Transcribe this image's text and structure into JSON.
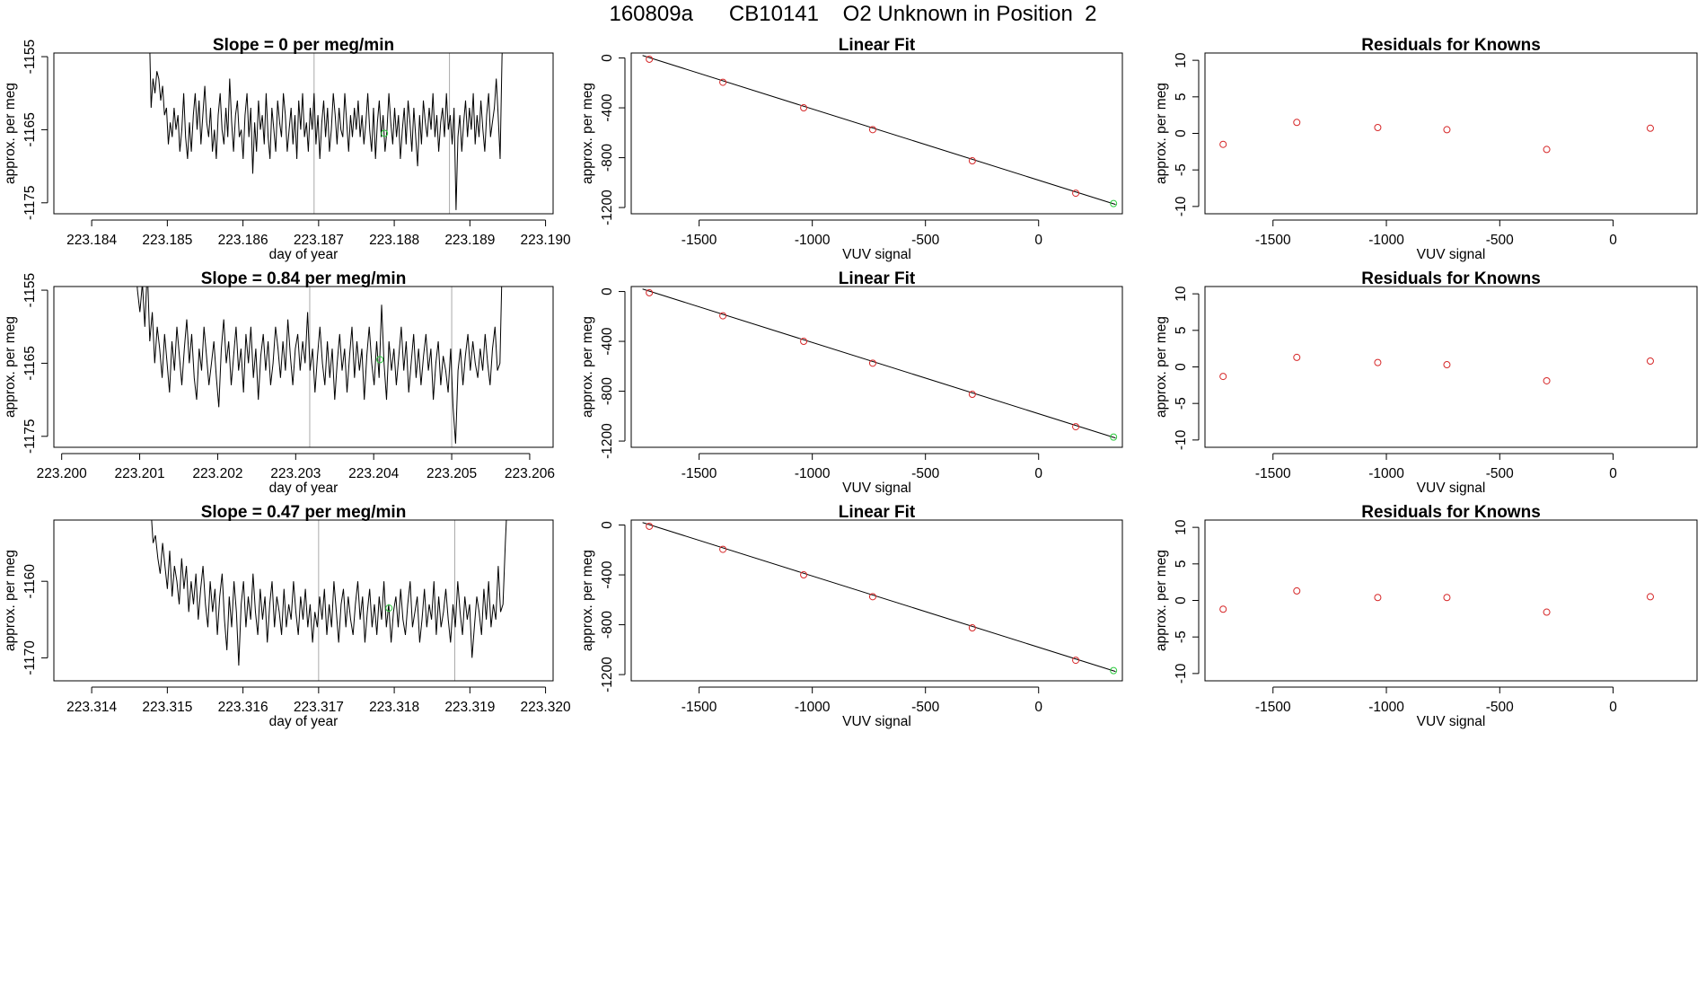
{
  "title": "160809a      CB10141    O2 Unknown in Position  2",
  "colors": {
    "known": "#d62728",
    "unknown": "#2ecc40",
    "trace": "#000000",
    "vline": "#aaaaaa"
  },
  "chart_data": [
    {
      "type": "line",
      "panel": "timeseries",
      "row": 1,
      "title": "Slope =  0  per meg/min",
      "xlabel": "day of year",
      "ylabel": "approx. per meg",
      "xlim": [
        223.1835,
        223.1901
      ],
      "ylim": [
        -1176.5,
        -1154.5
      ],
      "xticks": [
        "223.184",
        "223.185",
        "223.186",
        "223.187",
        "223.188",
        "223.189",
        "223.190"
      ],
      "xtick_values": [
        223.184,
        223.185,
        223.186,
        223.187,
        223.188,
        223.189,
        223.19
      ],
      "yticks": [
        "-1175",
        "-1165",
        "-1155"
      ],
      "ytick_values": [
        -1175,
        -1165,
        -1155
      ],
      "vlines": [
        223.18694,
        223.18873
      ],
      "trace_start": 223.18476,
      "trace_end": 223.18945,
      "y": [
        -1150,
        -1162,
        -1158,
        -1160,
        -1157,
        -1158,
        -1161,
        -1159,
        -1163,
        -1162,
        -1167,
        -1164,
        -1166,
        -1162,
        -1165,
        -1163,
        -1168,
        -1165,
        -1160,
        -1166,
        -1169,
        -1164,
        -1168,
        -1163,
        -1160,
        -1165,
        -1161,
        -1167,
        -1163,
        -1159,
        -1164,
        -1166,
        -1162,
        -1168,
        -1165,
        -1169,
        -1163,
        -1160,
        -1165,
        -1167,
        -1162,
        -1166,
        -1158,
        -1164,
        -1168,
        -1163,
        -1161,
        -1166,
        -1165,
        -1169,
        -1163,
        -1160,
        -1166,
        -1162,
        -1171,
        -1164,
        -1168,
        -1161,
        -1165,
        -1163,
        -1167,
        -1160,
        -1166,
        -1169,
        -1162,
        -1165,
        -1168,
        -1161,
        -1164,
        -1166,
        -1160,
        -1163,
        -1168,
        -1165,
        -1162,
        -1167,
        -1163,
        -1169,
        -1161,
        -1165,
        -1160,
        -1166,
        -1164,
        -1168,
        -1162,
        -1165,
        -1160,
        -1167,
        -1163,
        -1169,
        -1164,
        -1161,
        -1166,
        -1162,
        -1168,
        -1165,
        -1160,
        -1163,
        -1167,
        -1162,
        -1165,
        -1166,
        -1160,
        -1164,
        -1168,
        -1163,
        -1166,
        -1162,
        -1165,
        -1161,
        -1166,
        -1163,
        -1167,
        -1164,
        -1160,
        -1165,
        -1168,
        -1162,
        -1169,
        -1164,
        -1161,
        -1166,
        -1163,
        -1168,
        -1165,
        -1160,
        -1164,
        -1167,
        -1162,
        -1166,
        -1163,
        -1169,
        -1165,
        -1162,
        -1167,
        -1161,
        -1164,
        -1168,
        -1162,
        -1166,
        -1170,
        -1163,
        -1167,
        -1161,
        -1164,
        -1166,
        -1162,
        -1165,
        -1160,
        -1166,
        -1163,
        -1168,
        -1164,
        -1162,
        -1166,
        -1160,
        -1165,
        -1163,
        -1167,
        -1162,
        -1176,
        -1166,
        -1163,
        -1168,
        -1164,
        -1161,
        -1166,
        -1162,
        -1165,
        -1160,
        -1167,
        -1163,
        -1166,
        -1161,
        -1165,
        -1168,
        -1163,
        -1160,
        -1166,
        -1164,
        -1162,
        -1158,
        -1163,
        -1169,
        -1155,
        -1148
      ],
      "marker_x": 223.18787,
      "marker_y": -1165.5
    },
    {
      "type": "scatter",
      "panel": "linear-fit",
      "row": 1,
      "title": "Linear Fit",
      "xlabel": "VUV signal",
      "ylabel": "approx. per meg",
      "xlim": [
        -1800,
        370
      ],
      "ylim": [
        -1250,
        40
      ],
      "xticks": [
        "-1500",
        "-1000",
        "-500",
        "0"
      ],
      "xtick_values": [
        -1500,
        -1000,
        -500,
        0
      ],
      "yticks": [
        "0",
        "-400",
        "-800",
        "-1200"
      ],
      "ytick_values": [
        0,
        -400,
        -800,
        -1200
      ],
      "fit_line": [
        [
          -1750,
          20
        ],
        [
          340,
          -1175
        ]
      ],
      "known_x": [
        -1720,
        -1395,
        -1038,
        -733,
        -293,
        164
      ],
      "known_y": [
        -10,
        -195,
        -400,
        -575,
        -825,
        -1085
      ],
      "unknown_x": 331,
      "unknown_y": -1168
    },
    {
      "type": "scatter",
      "panel": "residuals",
      "row": 1,
      "title": "Residuals for Knowns",
      "xlabel": "VUV signal",
      "ylabel": "approx. per meg",
      "xlim": [
        -1800,
        370
      ],
      "ylim": [
        -11,
        11
      ],
      "xticks": [
        "-1500",
        "-1000",
        "-500",
        "0"
      ],
      "xtick_values": [
        -1500,
        -1000,
        -500,
        0
      ],
      "yticks": [
        "-10",
        "-5",
        "0",
        "5",
        "10"
      ],
      "ytick_values": [
        -10,
        -5,
        0,
        5,
        10
      ],
      "x": [
        -1720,
        -1395,
        -1038,
        -733,
        -293,
        164
      ],
      "y": [
        -1.5,
        1.5,
        0.8,
        0.5,
        -2.2,
        0.7
      ]
    },
    {
      "type": "line",
      "panel": "timeseries",
      "row": 2,
      "title": "Slope =  0.84  per meg/min",
      "xlabel": "day of year",
      "ylabel": "approx. per meg",
      "xlim": [
        223.1999,
        223.2063
      ],
      "ylim": [
        -1176.5,
        -1154.5
      ],
      "xticks": [
        "223.200",
        "223.201",
        "223.202",
        "223.203",
        "223.204",
        "223.205",
        "223.206"
      ],
      "xtick_values": [
        223.2,
        223.201,
        223.202,
        223.203,
        223.204,
        223.205,
        223.206
      ],
      "yticks": [
        "-1175",
        "-1165",
        "-1155"
      ],
      "ytick_values": [
        -1175,
        -1165,
        -1155
      ],
      "vlines": [
        223.20318,
        223.205
      ],
      "trace_start": 223.20094,
      "trace_end": 223.20565,
      "y": [
        -1150,
        -1155,
        -1158,
        -1154,
        -1160,
        -1152,
        -1162,
        -1158,
        -1165,
        -1160,
        -1163,
        -1167,
        -1161,
        -1165,
        -1169,
        -1162,
        -1166,
        -1160,
        -1164,
        -1168,
        -1163,
        -1159,
        -1165,
        -1161,
        -1167,
        -1170,
        -1163,
        -1166,
        -1160,
        -1164,
        -1168,
        -1165,
        -1162,
        -1167,
        -1171,
        -1163,
        -1159,
        -1165,
        -1162,
        -1168,
        -1164,
        -1160,
        -1166,
        -1163,
        -1169,
        -1161,
        -1165,
        -1160,
        -1167,
        -1163,
        -1170,
        -1164,
        -1161,
        -1166,
        -1162,
        -1168,
        -1165,
        -1160,
        -1163,
        -1167,
        -1162,
        -1166,
        -1159,
        -1164,
        -1168,
        -1163,
        -1161,
        -1166,
        -1162,
        -1165,
        -1158,
        -1166,
        -1163,
        -1169,
        -1164,
        -1160,
        -1165,
        -1168,
        -1162,
        -1167,
        -1163,
        -1170,
        -1165,
        -1161,
        -1166,
        -1163,
        -1169,
        -1164,
        -1160,
        -1167,
        -1162,
        -1166,
        -1163,
        -1170,
        -1164,
        -1160,
        -1165,
        -1168,
        -1162,
        -1167,
        -1157,
        -1165,
        -1170,
        -1162,
        -1166,
        -1163,
        -1168,
        -1164,
        -1160,
        -1166,
        -1162,
        -1169,
        -1165,
        -1161,
        -1167,
        -1163,
        -1168,
        -1164,
        -1161,
        -1166,
        -1163,
        -1170,
        -1165,
        -1162,
        -1168,
        -1164,
        -1166,
        -1169,
        -1163,
        -1171,
        -1176,
        -1166,
        -1163,
        -1168,
        -1164,
        -1161,
        -1166,
        -1162,
        -1165,
        -1167,
        -1163,
        -1166,
        -1161,
        -1165,
        -1168,
        -1163,
        -1160,
        -1166,
        -1165,
        -1150
      ],
      "marker_x": 223.20408,
      "marker_y": -1164.5
    },
    {
      "type": "scatter",
      "panel": "linear-fit",
      "row": 2,
      "title": "Linear Fit",
      "xlabel": "VUV signal",
      "ylabel": "approx. per meg",
      "xlim": [
        -1800,
        370
      ],
      "ylim": [
        -1250,
        40
      ],
      "xticks": [
        "-1500",
        "-1000",
        "-500",
        "0"
      ],
      "xtick_values": [
        -1500,
        -1000,
        -500,
        0
      ],
      "yticks": [
        "0",
        "-400",
        "-800",
        "-1200"
      ],
      "ytick_values": [
        0,
        -400,
        -800,
        -1200
      ],
      "fit_line": [
        [
          -1750,
          20
        ],
        [
          340,
          -1175
        ]
      ],
      "known_x": [
        -1720,
        -1395,
        -1038,
        -733,
        -293,
        164
      ],
      "known_y": [
        -10,
        -195,
        -400,
        -575,
        -825,
        -1085
      ],
      "unknown_x": 331,
      "unknown_y": -1168
    },
    {
      "type": "scatter",
      "panel": "residuals",
      "row": 2,
      "title": "Residuals for Knowns",
      "xlabel": "VUV signal",
      "ylabel": "approx. per meg",
      "xlim": [
        -1800,
        370
      ],
      "ylim": [
        -11,
        11
      ],
      "xticks": [
        "-1500",
        "-1000",
        "-500",
        "0"
      ],
      "xtick_values": [
        -1500,
        -1000,
        -500,
        0
      ],
      "yticks": [
        "-10",
        "-5",
        "0",
        "5",
        "10"
      ],
      "ytick_values": [
        -10,
        -5,
        0,
        5,
        10
      ],
      "x": [
        -1720,
        -1395,
        -1038,
        -733,
        -293,
        164
      ],
      "y": [
        -1.3,
        1.3,
        0.6,
        0.3,
        -1.9,
        0.8
      ]
    },
    {
      "type": "line",
      "panel": "timeseries",
      "row": 3,
      "title": "Slope =  0.47  per meg/min",
      "xlabel": "day of year",
      "ylabel": "approx. per meg",
      "xlim": [
        223.3135,
        223.3201
      ],
      "ylim": [
        -1173,
        -1152
      ],
      "xticks": [
        "223.314",
        "223.315",
        "223.316",
        "223.317",
        "223.318",
        "223.319",
        "223.320"
      ],
      "xtick_values": [
        223.314,
        223.315,
        223.316,
        223.317,
        223.318,
        223.319,
        223.32
      ],
      "yticks": [
        "-1170",
        "-1160"
      ],
      "ytick_values": [
        -1170,
        -1160
      ],
      "vlines": [
        223.317,
        223.3188
      ],
      "trace_start": 223.31478,
      "trace_end": 223.3195,
      "y": [
        -1150,
        -1155,
        -1154,
        -1157,
        -1159,
        -1155,
        -1158,
        -1161,
        -1156,
        -1162,
        -1158,
        -1160,
        -1163,
        -1157,
        -1161,
        -1158,
        -1164,
        -1160,
        -1163,
        -1159,
        -1165,
        -1161,
        -1158,
        -1163,
        -1166,
        -1160,
        -1164,
        -1161,
        -1167,
        -1162,
        -1159,
        -1165,
        -1169,
        -1162,
        -1166,
        -1160,
        -1164,
        -1171,
        -1163,
        -1160,
        -1166,
        -1162,
        -1165,
        -1159,
        -1164,
        -1167,
        -1161,
        -1165,
        -1162,
        -1168,
        -1163,
        -1160,
        -1166,
        -1162,
        -1164,
        -1167,
        -1161,
        -1166,
        -1163,
        -1165,
        -1160,
        -1164,
        -1167,
        -1162,
        -1165,
        -1161,
        -1166,
        -1163,
        -1168,
        -1164,
        -1166,
        -1162,
        -1165,
        -1161,
        -1167,
        -1163,
        -1166,
        -1160,
        -1164,
        -1168,
        -1163,
        -1161,
        -1166,
        -1162,
        -1165,
        -1167,
        -1163,
        -1160,
        -1165,
        -1162,
        -1168,
        -1164,
        -1161,
        -1166,
        -1163,
        -1167,
        -1162,
        -1165,
        -1160,
        -1166,
        -1163,
        -1168,
        -1164,
        -1162,
        -1166,
        -1161,
        -1165,
        -1167,
        -1163,
        -1160,
        -1166,
        -1164,
        -1162,
        -1168,
        -1165,
        -1161,
        -1166,
        -1163,
        -1165,
        -1160,
        -1167,
        -1162,
        -1166,
        -1164,
        -1161,
        -1165,
        -1168,
        -1163,
        -1166,
        -1160,
        -1164,
        -1167,
        -1162,
        -1165,
        -1163,
        -1170,
        -1166,
        -1162,
        -1164,
        -1167,
        -1161,
        -1165,
        -1160,
        -1166,
        -1163,
        -1165,
        -1158,
        -1164,
        -1163,
        -1155,
        -1148
      ],
      "marker_x": 223.31793,
      "marker_y": -1163.5
    },
    {
      "type": "scatter",
      "panel": "linear-fit",
      "row": 3,
      "title": "Linear Fit",
      "xlabel": "VUV signal",
      "ylabel": "approx. per meg",
      "xlim": [
        -1800,
        370
      ],
      "ylim": [
        -1250,
        40
      ],
      "xticks": [
        "-1500",
        "-1000",
        "-500",
        "0"
      ],
      "xtick_values": [
        -1500,
        -1000,
        -500,
        0
      ],
      "yticks": [
        "0",
        "-400",
        "-800",
        "-1200"
      ],
      "ytick_values": [
        0,
        -400,
        -800,
        -1200
      ],
      "fit_line": [
        [
          -1750,
          20
        ],
        [
          340,
          -1175
        ]
      ],
      "known_x": [
        -1720,
        -1395,
        -1038,
        -733,
        -293,
        164
      ],
      "known_y": [
        -10,
        -195,
        -400,
        -575,
        -825,
        -1085
      ],
      "unknown_x": 331,
      "unknown_y": -1168
    },
    {
      "type": "scatter",
      "panel": "residuals",
      "row": 3,
      "title": "Residuals for Knowns",
      "xlabel": "VUV signal",
      "ylabel": "approx. per meg",
      "xlim": [
        -1800,
        370
      ],
      "ylim": [
        -11,
        11
      ],
      "xticks": [
        "-1500",
        "-1000",
        "-500",
        "0"
      ],
      "xtick_values": [
        -1500,
        -1000,
        -500,
        0
      ],
      "yticks": [
        "-10",
        "-5",
        "0",
        "5",
        "10"
      ],
      "ytick_values": [
        -10,
        -5,
        0,
        5,
        10
      ],
      "x": [
        -1720,
        -1395,
        -1038,
        -733,
        -293,
        164
      ],
      "y": [
        -1.2,
        1.3,
        0.4,
        0.4,
        -1.6,
        0.5
      ]
    }
  ]
}
